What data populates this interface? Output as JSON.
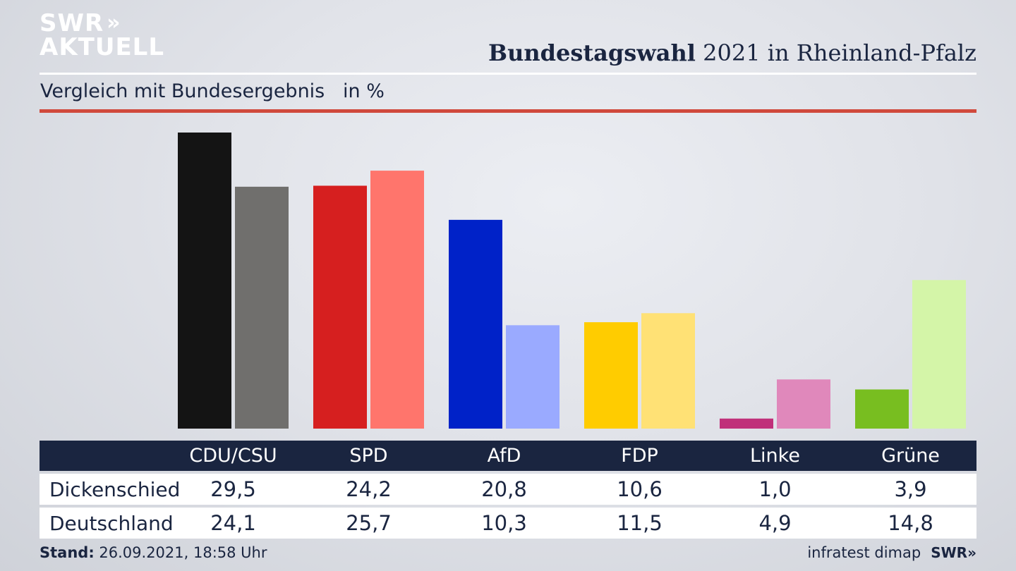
{
  "branding": {
    "logo_top": "SWR",
    "logo_chevrons": "»",
    "logo_bottom": "AKTUELL",
    "footer_source": "infratest dimap",
    "footer_logo": "SWR»"
  },
  "header": {
    "title_bold": "Bundestagswahl",
    "title_rest": " 2021 in Rheinland-Pfalz",
    "subtitle": "Vergleich mit Bundesergebnis   in %"
  },
  "footer": {
    "stand_label": "Stand:",
    "stand_value": " 26.09.2021, 18:58 Uhr"
  },
  "chart_data": {
    "type": "bar",
    "title": "Bundestagswahl 2021 in Rheinland-Pfalz",
    "subtitle": "Vergleich mit Bundesergebnis in %",
    "categories": [
      "CDU/CSU",
      "SPD",
      "AfD",
      "FDP",
      "Linke",
      "Grüne"
    ],
    "series": [
      {
        "name": "Dickenschied",
        "values": [
          29.5,
          24.2,
          20.8,
          10.6,
          1.0,
          3.9
        ],
        "display": [
          "29,5",
          "24,2",
          "20,8",
          "10,6",
          "1,0",
          "3,9"
        ],
        "colors": [
          "#141414",
          "#d61f1f",
          "#0022c8",
          "#ffcc00",
          "#c0307a",
          "#78be20"
        ]
      },
      {
        "name": "Deutschland",
        "values": [
          24.1,
          25.7,
          10.3,
          11.5,
          4.9,
          14.8
        ],
        "display": [
          "24,1",
          "25,7",
          "10,3",
          "11,5",
          "4,9",
          "14,8"
        ],
        "colors": [
          "#706f6d",
          "#ff756c",
          "#9aaaff",
          "#ffe175",
          "#e088bb",
          "#d4f5a8"
        ]
      }
    ],
    "ylim": [
      0,
      29.5
    ],
    "grid": false,
    "legend": "table-below"
  }
}
